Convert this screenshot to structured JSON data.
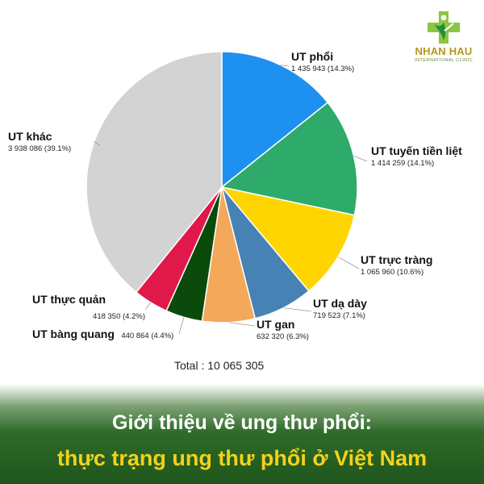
{
  "logo": {
    "brand": "NHAN HAU",
    "subtitle": "INTERNATIONAL CLINIC",
    "colors": {
      "cross": "#8cc63f",
      "figure": "#1f8f3a",
      "text": "#b5961f"
    }
  },
  "chart_data": {
    "type": "pie",
    "start": "12 o'clock",
    "direction": "clockwise",
    "slices": [
      {
        "name": "UT phổi",
        "value": 1435943,
        "value_label": "1 435 943 (14.3%)",
        "percent": 14.3,
        "color": "#1e90f0"
      },
      {
        "name": "UT tuyến tiền liệt",
        "value": 1414259,
        "value_label": "1 414 259 (14.1%)",
        "percent": 14.1,
        "color": "#2eaa6b"
      },
      {
        "name": "UT trực tràng",
        "value": 1065960,
        "value_label": "1 065 960 (10.6%)",
        "percent": 10.6,
        "color": "#ffd500"
      },
      {
        "name": "UT dạ dày",
        "value": 719523,
        "value_label": "719 523 (7.1%)",
        "percent": 7.1,
        "color": "#4682b4"
      },
      {
        "name": "UT gan",
        "value": 632320,
        "value_label": "632 320 (6.3%)",
        "percent": 6.3,
        "color": "#f4a85a"
      },
      {
        "name": "UT bàng quang",
        "value": 440864,
        "value_label": "440 864 (4.4%)",
        "percent": 4.4,
        "color": "#0a4a0a"
      },
      {
        "name": "UT thực quản",
        "value": 418350,
        "value_label": "418 350 (4.2%)",
        "percent": 4.2,
        "color": "#e0194a"
      },
      {
        "name": "UT khác",
        "value": 3938086,
        "value_label": "3 938 086 (39.1%)",
        "percent": 39.1,
        "color": "#d3d3d3"
      }
    ],
    "total_label": "Total : 10 065 305",
    "total": 10065305
  },
  "banner": {
    "line1": "Giới thiệu về ung thư phổi:",
    "line2": "thực trạng ung thư phổi ở Việt Nam",
    "colors": {
      "line1": "#ffffff",
      "line2": "#f2d21a",
      "background": "#2f6b28"
    }
  }
}
